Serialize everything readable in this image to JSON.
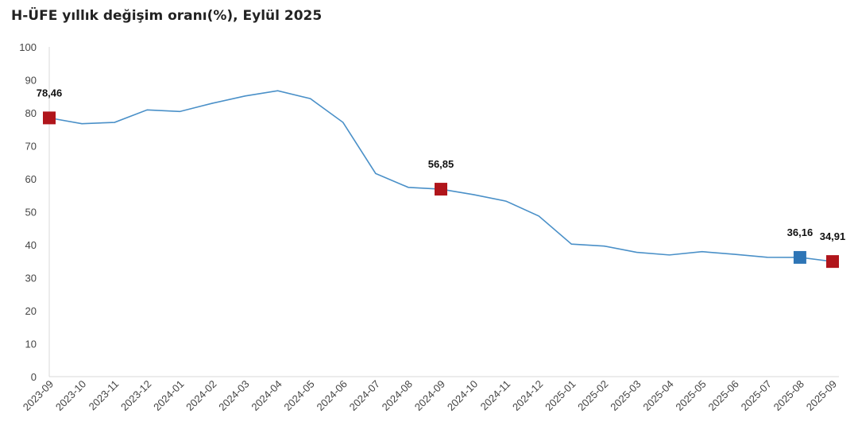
{
  "chart_data": {
    "type": "line",
    "title": "H-ÜFE yıllık değişim oranı(%), Eylül 2025",
    "categories": [
      "2023-09",
      "2023-10",
      "2023-11",
      "2023-12",
      "2024-01",
      "2024-02",
      "2024-03",
      "2024-04",
      "2024-05",
      "2024-06",
      "2024-07",
      "2024-08",
      "2024-09",
      "2024-10",
      "2024-11",
      "2024-12",
      "2025-01",
      "2025-02",
      "2025-03",
      "2025-04",
      "2025-05",
      "2025-06",
      "2025-07",
      "2025-08",
      "2025-09"
    ],
    "values": [
      78.46,
      76.7,
      77.1,
      80.9,
      80.4,
      82.9,
      85.1,
      86.7,
      84.3,
      77.1,
      61.6,
      57.4,
      56.85,
      55.2,
      53.2,
      48.7,
      40.2,
      39.6,
      37.7,
      36.9,
      37.9,
      37.1,
      36.2,
      36.16,
      34.91
    ],
    "ylim": [
      0,
      100
    ],
    "yticks": [
      0,
      10,
      20,
      30,
      40,
      50,
      60,
      70,
      80,
      90,
      100
    ],
    "grid": false,
    "line_color": "#4A90C8",
    "highlighted_points": [
      {
        "category": "2023-09",
        "label": "78,46",
        "color": "#B0151B"
      },
      {
        "category": "2024-09",
        "label": "56,85",
        "color": "#B0151B"
      },
      {
        "category": "2025-08",
        "label": "36,16",
        "color": "#2E75B6"
      },
      {
        "category": "2025-09",
        "label": "34,91",
        "color": "#B0151B"
      }
    ]
  }
}
